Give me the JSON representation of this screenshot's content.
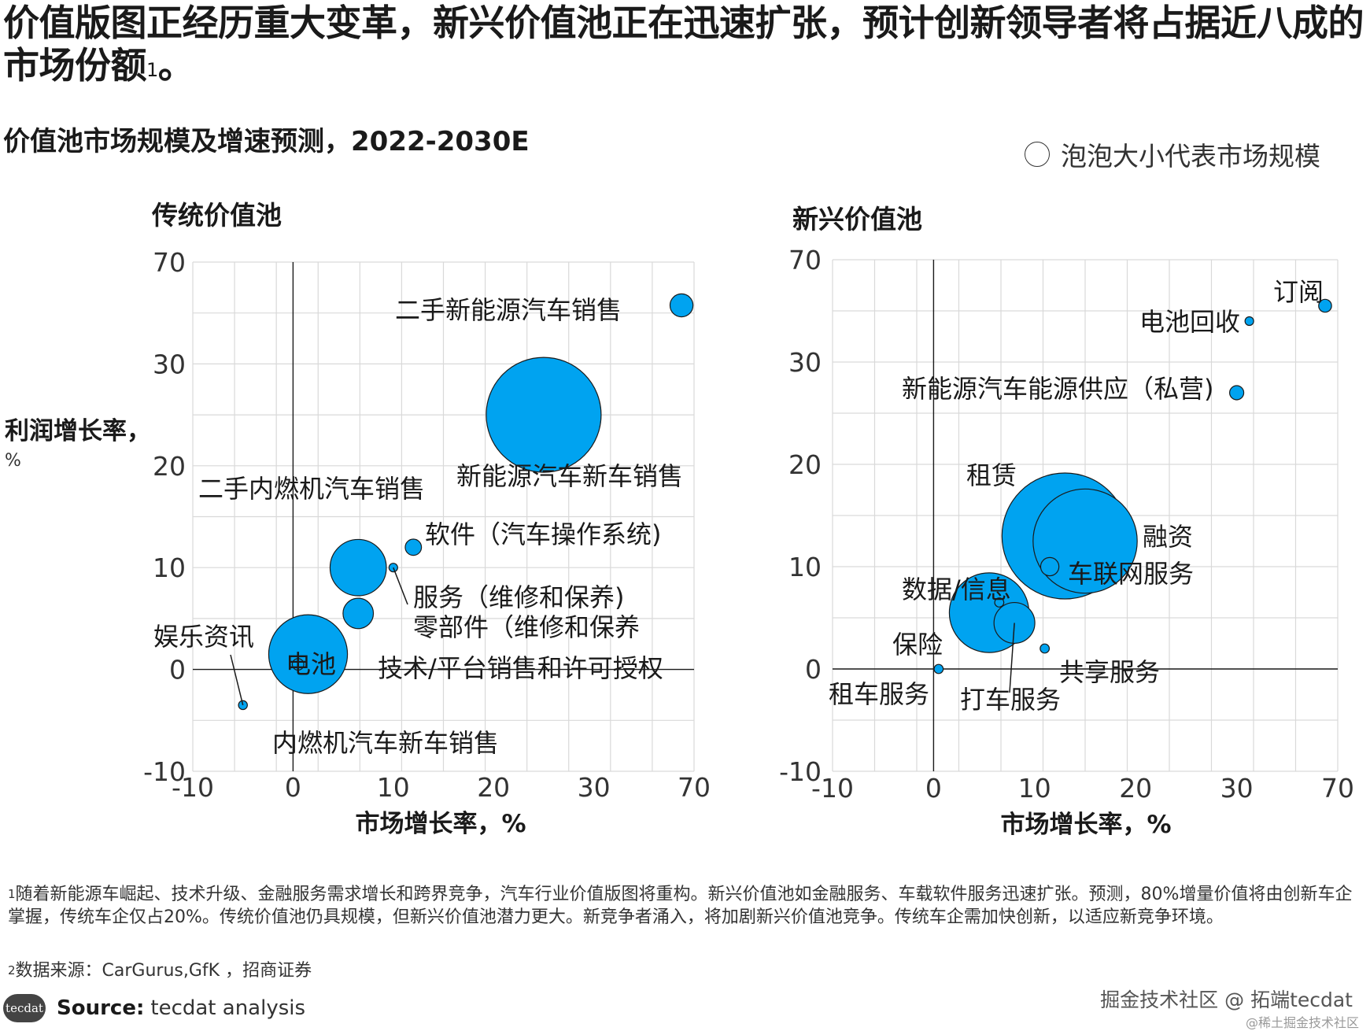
{
  "headline": "价值版图正经历重大变革，新兴价值池正在迅速扩张，预计创新领导者将占据近八成的市场份额",
  "headline_sup": "1",
  "headline_end": "。",
  "subtitle": "价值池市场规模及增速预测，2022-2030E",
  "legend": {
    "label": "泡泡大小代表市场规模"
  },
  "colors": {
    "bubble": "#00A3F0",
    "bubble_stroke": "#1a1a1a",
    "grid": "#d9d9d9",
    "axis": "#1a1a1a"
  },
  "chart_data": [
    {
      "type": "scatter",
      "title": "传统价值池",
      "xlabel": "市场增长率，%",
      "ylabel": "利润增长率，%",
      "x_ticks": [
        "-10",
        "0",
        "10",
        "20",
        "30",
        "70"
      ],
      "y_ticks": [
        "70",
        "30",
        "20",
        "10",
        "0",
        "-10"
      ],
      "grid": true,
      "points": [
        {
          "label": "二手新能源汽车销售",
          "x": 65,
          "y": 53,
          "size": 4
        },
        {
          "label": "新能源汽车新车销售",
          "x": 25,
          "y": 25,
          "size": 100
        },
        {
          "label": "二手内燃机汽车销售",
          "x": 6.5,
          "y": 10,
          "size": 24
        },
        {
          "label": "软件（汽车操作系统)",
          "x": 12,
          "y": 12,
          "size": 2
        },
        {
          "label": "服务（维修和保养)",
          "x": 10,
          "y": 10,
          "size": 0.5
        },
        {
          "label": "零部件（维修和保养",
          "x": 6.5,
          "y": 5.5,
          "size": 7
        },
        {
          "label": "技术/平台销售和许可授权",
          "x": 0.5,
          "y": 0.5,
          "size": 1
        },
        {
          "label": "电池",
          "x": 1.5,
          "y": 1.5,
          "size": 47
        },
        {
          "label": "娱乐资讯",
          "x": -5,
          "y": -3.5,
          "size": 0.6
        },
        {
          "label": "内燃机汽车新车销售",
          "x": 1.5,
          "y": 1.5,
          "size": 47
        }
      ]
    },
    {
      "type": "scatter",
      "title": "新兴价值池",
      "xlabel": "市场增长率，%",
      "ylabel": "",
      "x_ticks": [
        "-10",
        "0",
        "10",
        "20",
        "30",
        "70"
      ],
      "y_ticks": [
        "70",
        "30",
        "20",
        "10",
        "0",
        "-10"
      ],
      "grid": true,
      "points": [
        {
          "label": "订阅",
          "x": 65,
          "y": 52,
          "size": 1
        },
        {
          "label": "电池回收",
          "x": 35,
          "y": 46,
          "size": 0.4
        },
        {
          "label": "新能源汽车能源供应（私营)",
          "x": 30,
          "y": 27,
          "size": 1.2
        },
        {
          "label": "租赁",
          "x": 13,
          "y": 13,
          "size": 95
        },
        {
          "label": "融资",
          "x": 15,
          "y": 12.5,
          "size": 65
        },
        {
          "label": "车联网服务",
          "x": 11.5,
          "y": 10,
          "size": 2
        },
        {
          "label": "数据/信息",
          "x": 6.5,
          "y": 6.5,
          "size": 0.5
        },
        {
          "label": "保险",
          "x": 5.5,
          "y": 5.5,
          "size": 38
        },
        {
          "label": "打车服务",
          "x": 8,
          "y": 4.5,
          "size": 10
        },
        {
          "label": "共享服务",
          "x": 11,
          "y": 2,
          "size": 0.5
        },
        {
          "label": "租车服务",
          "x": 0.5,
          "y": 0,
          "size": 0.5
        }
      ]
    }
  ],
  "footnotes": {
    "note1_sup": "1",
    "note1": "随着新能源车崛起、技术升级、金融服务需求增长和跨界竞争，汽车行业价值版图将重构。新兴价值池如金融服务、车载软件服务迅速扩张。预测，80%增量价值将由创新车企掌握，传统车企仅占20%。传统价值池仍具规模，但新兴价值池潜力更大。新竞争者涌入，将加剧新兴价值池竞争。传统车企需加快创新，以适应新竞争环境。",
    "note2_sup": "2",
    "note2": "数据来源：CarGurus,GfK ，招商证券"
  },
  "source": {
    "logo": "tecdat",
    "label": "Source:",
    "value": "tecdat analysis"
  },
  "watermark": {
    "main": "掘金技术社区 @ 拓端tecdat",
    "sub": "@稀土掘金技术社区"
  }
}
